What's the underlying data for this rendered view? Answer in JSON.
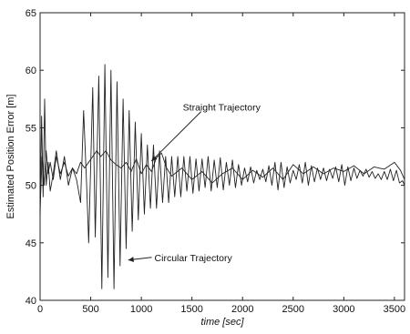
{
  "chart_data": {
    "type": "line",
    "title": "",
    "xlabel": "time [sec]",
    "ylabel": "Estimated Position Error [m]",
    "xlim": [
      0,
      3600
    ],
    "ylim": [
      40,
      65
    ],
    "xticks": [
      0,
      500,
      1000,
      1500,
      2000,
      2500,
      3000,
      3500
    ],
    "yticks": [
      40,
      45,
      50,
      55,
      60,
      65
    ],
    "grid": false,
    "legend": "none",
    "line_color": "#222222",
    "series": [
      {
        "name": "Straight Trajectory",
        "x": [
          0,
          20,
          40,
          60,
          80,
          100,
          130,
          160,
          200,
          240,
          280,
          320,
          360,
          400,
          440,
          480,
          520,
          560,
          600,
          650,
          700,
          750,
          800,
          850,
          900,
          950,
          1000,
          1050,
          1100,
          1150,
          1200,
          1250,
          1300,
          1400,
          1500,
          1600,
          1700,
          1800,
          1900,
          2000,
          2100,
          2200,
          2300,
          2400,
          2500,
          2600,
          2700,
          2800,
          2900,
          3000,
          3100,
          3200,
          3300,
          3400,
          3500,
          3560,
          3600
        ],
        "y": [
          48,
          52.5,
          50,
          53,
          51,
          52,
          50.5,
          52.5,
          51,
          52,
          50.8,
          51.5,
          51,
          52,
          51.5,
          52,
          52.5,
          53,
          52.5,
          53,
          52.2,
          51.8,
          51.5,
          52,
          51.2,
          52.3,
          51,
          51.8,
          51.2,
          52.4,
          52.8,
          51.5,
          50.8,
          51.5,
          50.5,
          51.2,
          50.2,
          51,
          51.5,
          50.5,
          51.3,
          50.7,
          51.5,
          50.5,
          51.8,
          51,
          51.6,
          51,
          51.5,
          51.2,
          51.7,
          51,
          51.6,
          51.4,
          52,
          51.3,
          50.5
        ]
      },
      {
        "name": "Circular Trajectory",
        "x": [
          0,
          15,
          30,
          45,
          60,
          80,
          100,
          130,
          160,
          200,
          240,
          280,
          320,
          360,
          400,
          430,
          460,
          480,
          520,
          545,
          580,
          610,
          640,
          670,
          700,
          730,
          760,
          790,
          820,
          850,
          880,
          910,
          940,
          970,
          1000,
          1030,
          1060,
          1090,
          1120,
          1150,
          1180,
          1210,
          1240,
          1270,
          1300,
          1330,
          1360,
          1390,
          1420,
          1450,
          1480,
          1510,
          1540,
          1570,
          1600,
          1630,
          1660,
          1690,
          1720,
          1750,
          1780,
          1810,
          1840,
          1870,
          1900,
          1930,
          1960,
          1990,
          2020,
          2050,
          2080,
          2110,
          2140,
          2170,
          2200,
          2230,
          2260,
          2290,
          2320,
          2350,
          2380,
          2410,
          2440,
          2470,
          2500,
          2530,
          2560,
          2590,
          2620,
          2650,
          2680,
          2710,
          2740,
          2770,
          2800,
          2830,
          2860,
          2890,
          2920,
          2950,
          2980,
          3010,
          3040,
          3070,
          3100,
          3130,
          3160,
          3190,
          3220,
          3250,
          3280,
          3310,
          3340,
          3370,
          3400,
          3430,
          3460,
          3490,
          3520,
          3550,
          3580,
          3600
        ],
        "y": [
          47,
          56,
          49,
          57.5,
          50,
          52,
          49.5,
          51,
          53,
          50.5,
          52.5,
          50,
          51.5,
          50.5,
          48.5,
          56.5,
          50,
          45,
          58.5,
          45.5,
          59.5,
          41,
          60.5,
          42,
          60,
          41,
          59,
          43,
          57.5,
          44.5,
          56.5,
          46,
          55.5,
          47,
          54.5,
          47.5,
          53.5,
          48,
          53.5,
          48,
          53,
          48.5,
          52.5,
          48.5,
          52.5,
          49,
          52.5,
          49,
          52.5,
          49.5,
          52.5,
          49.3,
          52.3,
          49.5,
          52.3,
          49.8,
          52.5,
          49.5,
          52.2,
          49.8,
          52.4,
          49.6,
          52,
          50,
          52.2,
          49.8,
          51.8,
          50,
          51.5,
          50.3,
          51.6,
          50.2,
          51.3,
          50.5,
          51.4,
          50.3,
          51.7,
          50,
          52,
          49.6,
          52,
          49.8,
          51.6,
          50.2,
          51.3,
          50.5,
          51.8,
          50.2,
          52,
          50,
          51.7,
          50.3,
          51.5,
          50.5,
          51.5,
          50.4,
          51.4,
          50.6,
          51.6,
          50.3,
          51.8,
          50,
          51.6,
          50.4,
          51.5,
          50.6,
          51.3,
          50.8,
          51.4,
          50.7,
          51.2,
          50.6,
          51,
          50.5,
          51.2,
          50.5,
          51.4,
          50.4,
          51.3,
          50.2,
          50.4,
          50
        ]
      }
    ],
    "annotations": [
      {
        "text": "Straight Trajectory",
        "x": 1500,
        "y": 56.8,
        "arrow_to_x": 1100,
        "arrow_to_y": 52.1
      },
      {
        "text": "Circular Trajectory",
        "x": 1130,
        "y": 43.5,
        "arrow_to_x": 870,
        "arrow_to_y": 43.5
      }
    ]
  }
}
